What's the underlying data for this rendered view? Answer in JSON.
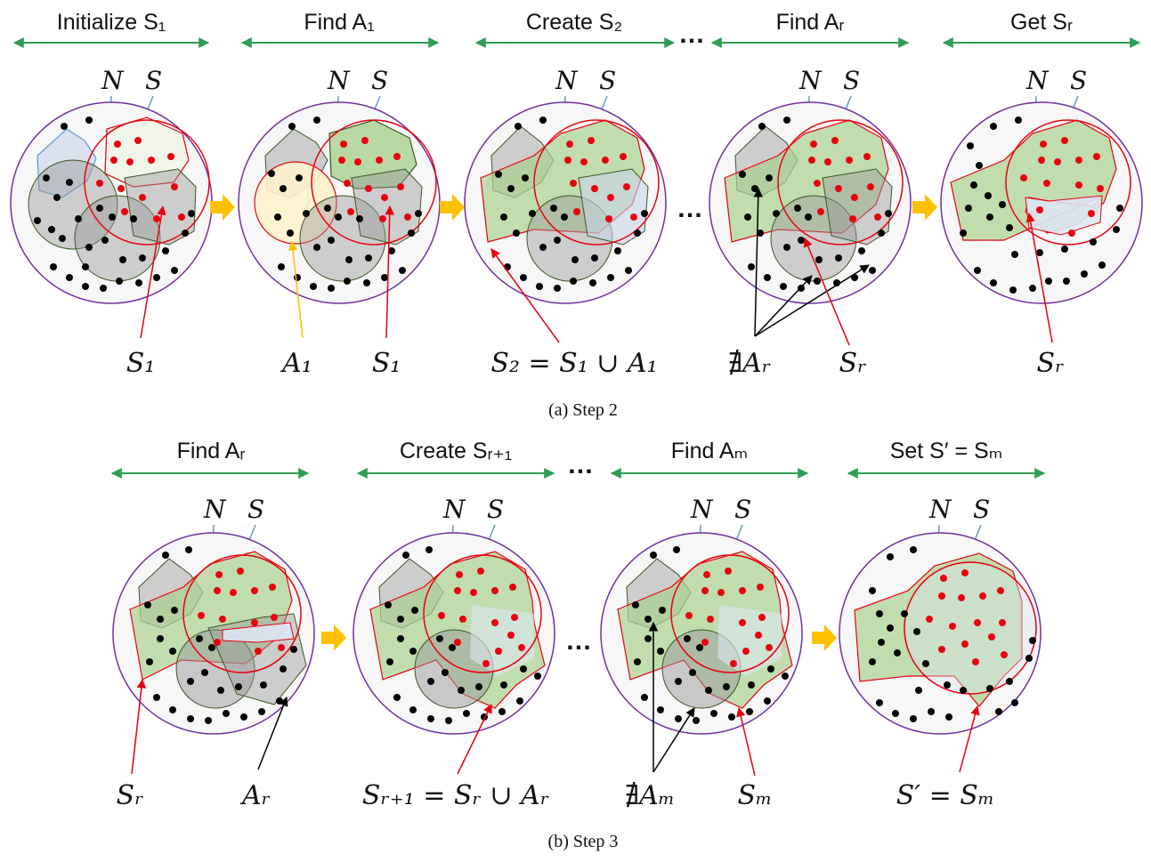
{
  "colors": {
    "green_arrow": "#2E9E55",
    "blue_arrow": "#5B9BD5",
    "red": "#E8000E",
    "yellow": "#FFC000",
    "black": "#000000",
    "circle_outline": "#7030A0",
    "gray_region": "#9A9A9A",
    "green_region": "#A9D18E",
    "blue_region": "#C7D4E6",
    "cream_region": "#FFF2CC"
  },
  "step2": {
    "caption": "(a) Step 2",
    "panels": [
      {
        "header": "Initialize S₁",
        "label_n": "N",
        "label_s": "S",
        "bottom": [
          "S₁"
        ]
      },
      {
        "header": "Find A₁",
        "label_n": "N",
        "label_s": "S",
        "bottom": [
          "A₁",
          "S₁"
        ]
      },
      {
        "header": "Create S₂",
        "label_n": "N",
        "label_s": "S",
        "bottom": [
          "S₂ = S₁ ∪ A₁"
        ]
      },
      {
        "header": "Find Aᵣ",
        "label_n": "N",
        "label_s": "S",
        "bottom": [
          "∄Aᵣ",
          "Sᵣ"
        ]
      },
      {
        "header": "Get Sᵣ",
        "label_n": "N",
        "label_s": "S",
        "bottom": [
          "Sᵣ"
        ]
      }
    ]
  },
  "step3": {
    "caption": "(b) Step 3",
    "panels": [
      {
        "header": "Find Aᵣ",
        "label_n": "N",
        "label_s": "S",
        "bottom": [
          "Sᵣ",
          "Aᵣ"
        ]
      },
      {
        "header": "Create Sᵣ₊₁",
        "label_n": "N",
        "label_s": "S",
        "bottom": [
          "Sᵣ₊₁ = Sᵣ ∪ Aᵣ"
        ]
      },
      {
        "header": "Find Aₘ",
        "label_n": "N",
        "label_s": "S",
        "bottom": [
          "∄Aₘ",
          "Sₘ"
        ]
      },
      {
        "header": "Set S′ = Sₘ",
        "label_n": "N",
        "label_s": "S",
        "bottom": [
          "S′ = Sₘ"
        ]
      }
    ]
  },
  "ellipsis": "…"
}
